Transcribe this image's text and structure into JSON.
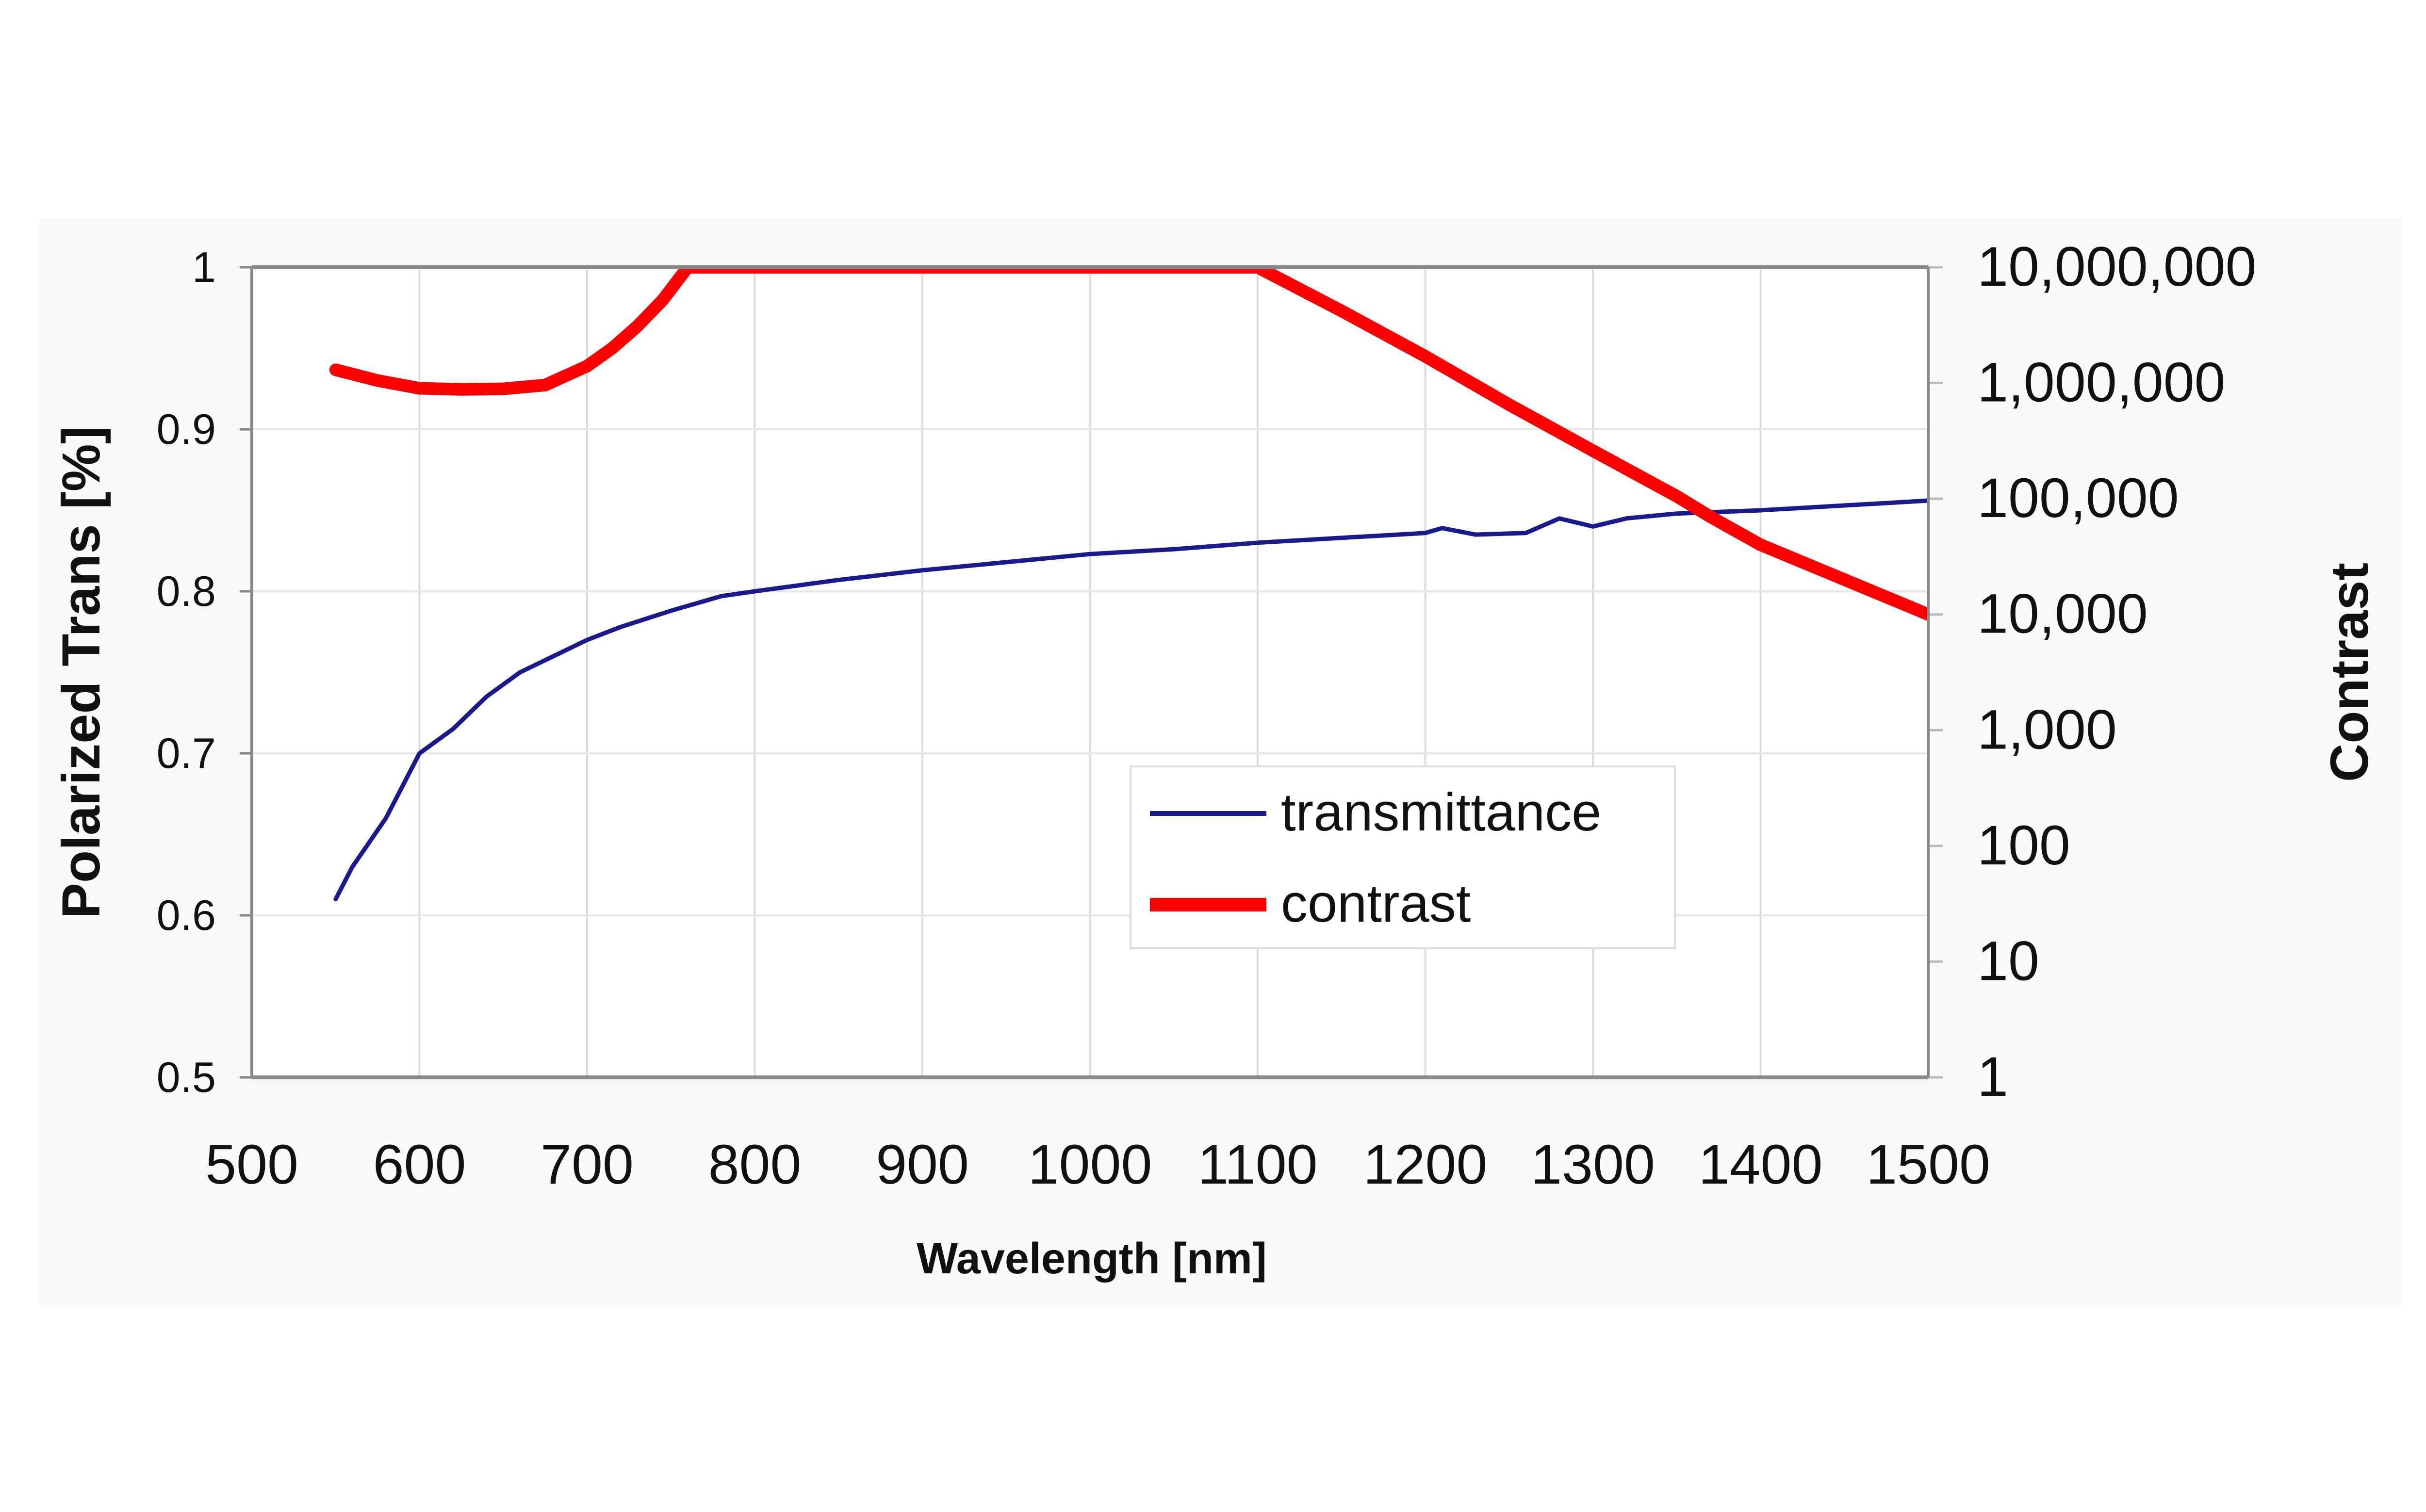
{
  "chart_data": {
    "type": "line",
    "title": "",
    "xlabel": "Wavelength [nm]",
    "ylabel": "Polarized Trans [%]",
    "y2label": "Contrast",
    "xlim": [
      500,
      1500
    ],
    "ylim": [
      0.5,
      1
    ],
    "y2lim": [
      1,
      10000000
    ],
    "y2scale": "log",
    "grid": true,
    "legend": "center-right",
    "xticks": [
      "500",
      "600",
      "700",
      "800",
      "900",
      "1000",
      "1100",
      "1200",
      "1300",
      "1400",
      "1500"
    ],
    "yticks": [
      "0.5",
      "0.6",
      "0.7",
      "0.8",
      "0.9",
      "1"
    ],
    "y2ticks": [
      "1",
      "10",
      "100",
      "1,000",
      "10,000",
      "100,000",
      "1,000,000",
      "10,000,000"
    ],
    "series": [
      {
        "name": "transmittance",
        "axis": "left",
        "color": "#1a1a8c",
        "x": [
          550,
          560,
          570,
          580,
          590,
          600,
          620,
          640,
          660,
          680,
          700,
          720,
          750,
          780,
          800,
          850,
          900,
          950,
          1000,
          1050,
          1100,
          1150,
          1200,
          1210,
          1230,
          1260,
          1280,
          1300,
          1320,
          1350,
          1400,
          1450,
          1500
        ],
        "y": [
          0.61,
          0.63,
          0.645,
          0.66,
          0.68,
          0.7,
          0.715,
          0.735,
          0.75,
          0.76,
          0.77,
          0.778,
          0.788,
          0.797,
          0.8,
          0.807,
          0.813,
          0.818,
          0.823,
          0.826,
          0.83,
          0.833,
          0.836,
          0.839,
          0.835,
          0.836,
          0.845,
          0.84,
          0.845,
          0.848,
          0.85,
          0.853,
          0.856
        ]
      },
      {
        "name": "contrast",
        "axis": "right",
        "color": "#ff0000",
        "x": [
          550,
          575,
          600,
          625,
          650,
          675,
          700,
          715,
          730,
          745,
          760,
          1100,
          1150,
          1200,
          1250,
          1300,
          1350,
          1370,
          1400,
          1450,
          1500
        ],
        "y": [
          1300000,
          1050000,
          900000,
          880000,
          890000,
          960000,
          1400000,
          2000000,
          3100000,
          5200000,
          10000000,
          10000000,
          4200000,
          1700000,
          650000,
          260000,
          105000,
          70000,
          40000,
          20000,
          10000
        ]
      }
    ]
  }
}
